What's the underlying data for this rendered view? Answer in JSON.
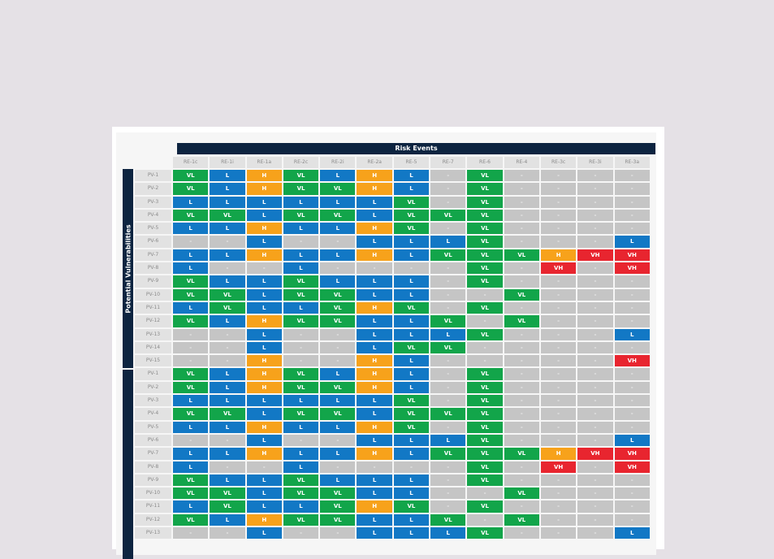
{
  "header": {
    "title": "Risk Events"
  },
  "side_label": "Potential Vulnerabilities",
  "colors": {
    "VL": "#12a54a",
    "L": "#1278c5",
    "H": "#f7a21b",
    "VH": "#e8252f",
    "none": "#c5c5c5",
    "header_bg": "#0d2440"
  },
  "columns": [
    "RE-1c",
    "RE-1i",
    "RE-1a",
    "RE-2c",
    "RE-2i",
    "RE-2a",
    "RE-5",
    "RE-7",
    "RE-6",
    "RE-4",
    "RE-3c",
    "RE-3i",
    "RE-3a"
  ],
  "rows": [
    {
      "label": "PV-1",
      "cells": [
        "VL",
        "L",
        "H",
        "VL",
        "L",
        "H",
        "L",
        "-",
        "VL",
        "-",
        "-",
        "-",
        "-"
      ]
    },
    {
      "label": "PV-2",
      "cells": [
        "VL",
        "L",
        "H",
        "VL",
        "VL",
        "H",
        "L",
        "-",
        "VL",
        "-",
        "-",
        "-",
        "-"
      ]
    },
    {
      "label": "PV-3",
      "cells": [
        "L",
        "L",
        "L",
        "L",
        "L",
        "L",
        "VL",
        "-",
        "VL",
        "-",
        "-",
        "-",
        "-"
      ]
    },
    {
      "label": "PV-4",
      "cells": [
        "VL",
        "VL",
        "L",
        "VL",
        "VL",
        "L",
        "VL",
        "VL",
        "VL",
        "-",
        "-",
        "-",
        "-"
      ]
    },
    {
      "label": "PV-5",
      "cells": [
        "L",
        "L",
        "H",
        "L",
        "L",
        "H",
        "VL",
        "-",
        "VL",
        "-",
        "-",
        "-",
        "-"
      ]
    },
    {
      "label": "PV-6",
      "cells": [
        "-",
        "-",
        "L",
        "-",
        "-",
        "L",
        "L",
        "L",
        "VL",
        "-",
        "-",
        "-",
        "L"
      ]
    },
    {
      "label": "PV-7",
      "cells": [
        "L",
        "L",
        "H",
        "L",
        "L",
        "H",
        "L",
        "VL",
        "VL",
        "VL",
        "H",
        "VH",
        "VH"
      ]
    },
    {
      "label": "PV-8",
      "cells": [
        "L",
        "-",
        "-",
        "L",
        "-",
        "-",
        "-",
        "-",
        "VL",
        "-",
        "VH",
        "-",
        "VH"
      ]
    },
    {
      "label": "PV-9",
      "cells": [
        "VL",
        "L",
        "L",
        "VL",
        "L",
        "L",
        "L",
        "-",
        "VL",
        "-",
        "-",
        "-",
        "-"
      ]
    },
    {
      "label": "PV-10",
      "cells": [
        "VL",
        "VL",
        "L",
        "VL",
        "VL",
        "L",
        "L",
        "-",
        "-",
        "VL",
        "-",
        "-",
        "-"
      ]
    },
    {
      "label": "PV-11",
      "cells": [
        "L",
        "VL",
        "L",
        "L",
        "VL",
        "H",
        "VL",
        "-",
        "VL",
        "-",
        "-",
        "-",
        "-"
      ]
    },
    {
      "label": "PV-12",
      "cells": [
        "VL",
        "L",
        "H",
        "VL",
        "VL",
        "L",
        "L",
        "VL",
        "-",
        "VL",
        "-",
        "-",
        "-"
      ]
    },
    {
      "label": "PV-13",
      "cells": [
        "-",
        "-",
        "L",
        "-",
        "-",
        "L",
        "L",
        "L",
        "VL",
        "-",
        "-",
        "-",
        "L"
      ]
    },
    {
      "label": "PV-14",
      "cells": [
        "-",
        "-",
        "L",
        "-",
        "-",
        "L",
        "VL",
        "VL",
        "-",
        "-",
        "-",
        "-",
        "-"
      ]
    },
    {
      "label": "PV-15",
      "cells": [
        "-",
        "-",
        "H",
        "-",
        "-",
        "H",
        "L",
        "-",
        "-",
        "-",
        "-",
        "-",
        "VH"
      ]
    },
    {
      "label": "PV-1",
      "cells": [
        "VL",
        "L",
        "H",
        "VL",
        "L",
        "H",
        "L",
        "-",
        "VL",
        "-",
        "-",
        "-",
        "-"
      ]
    },
    {
      "label": "PV-2",
      "cells": [
        "VL",
        "L",
        "H",
        "VL",
        "VL",
        "H",
        "L",
        "-",
        "VL",
        "-",
        "-",
        "-",
        "-"
      ]
    },
    {
      "label": "PV-3",
      "cells": [
        "L",
        "L",
        "L",
        "L",
        "L",
        "L",
        "VL",
        "-",
        "VL",
        "-",
        "-",
        "-",
        "-"
      ]
    },
    {
      "label": "PV-4",
      "cells": [
        "VL",
        "VL",
        "L",
        "VL",
        "VL",
        "L",
        "VL",
        "VL",
        "VL",
        "-",
        "-",
        "-",
        "-"
      ]
    },
    {
      "label": "PV-5",
      "cells": [
        "L",
        "L",
        "H",
        "L",
        "L",
        "H",
        "VL",
        "-",
        "VL",
        "-",
        "-",
        "-",
        "-"
      ]
    },
    {
      "label": "PV-6",
      "cells": [
        "-",
        "-",
        "L",
        "-",
        "-",
        "L",
        "L",
        "L",
        "VL",
        "-",
        "-",
        "-",
        "L"
      ]
    },
    {
      "label": "PV-7",
      "cells": [
        "L",
        "L",
        "H",
        "L",
        "L",
        "H",
        "L",
        "VL",
        "VL",
        "VL",
        "H",
        "VH",
        "VH"
      ]
    },
    {
      "label": "PV-8",
      "cells": [
        "L",
        "-",
        "-",
        "L",
        "-",
        "-",
        "-",
        "-",
        "VL",
        "-",
        "VH",
        "-",
        "VH"
      ]
    },
    {
      "label": "PV-9",
      "cells": [
        "VL",
        "L",
        "L",
        "VL",
        "L",
        "L",
        "L",
        "-",
        "VL",
        "-",
        "-",
        "-",
        "-"
      ]
    },
    {
      "label": "PV-10",
      "cells": [
        "VL",
        "VL",
        "L",
        "VL",
        "VL",
        "L",
        "L",
        "-",
        "-",
        "VL",
        "-",
        "-",
        "-"
      ]
    },
    {
      "label": "PV-11",
      "cells": [
        "L",
        "VL",
        "L",
        "L",
        "VL",
        "H",
        "VL",
        "-",
        "VL",
        "-",
        "-",
        "-",
        "-"
      ]
    },
    {
      "label": "PV-12",
      "cells": [
        "VL",
        "L",
        "H",
        "VL",
        "VL",
        "L",
        "L",
        "VL",
        "-",
        "VL",
        "-",
        "-",
        "-"
      ]
    },
    {
      "label": "PV-13",
      "cells": [
        "-",
        "-",
        "L",
        "-",
        "-",
        "L",
        "L",
        "L",
        "VL",
        "-",
        "-",
        "-",
        "L"
      ]
    }
  ]
}
